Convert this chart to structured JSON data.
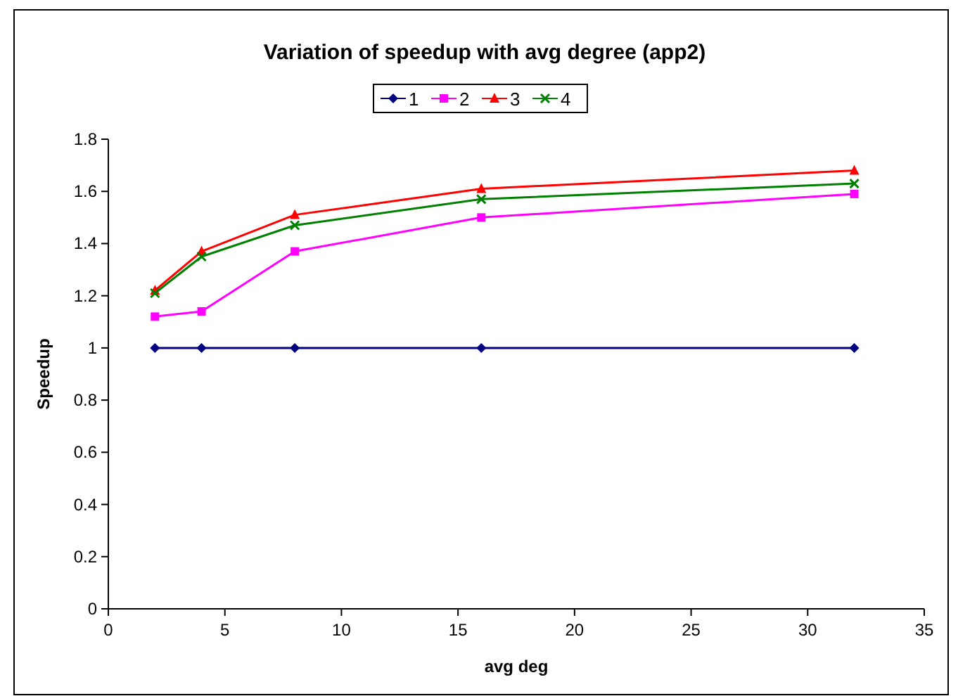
{
  "chart_data": {
    "type": "line",
    "title": "Variation of speedup with avg degree (app2)",
    "xlabel": "avg deg",
    "ylabel": "Speedup",
    "x": [
      2,
      4,
      8,
      16,
      32
    ],
    "series": [
      {
        "name": "1",
        "color": "#000080",
        "marker": "diamond",
        "values": [
          1,
          1,
          1,
          1,
          1
        ]
      },
      {
        "name": "2",
        "color": "#ff00ff",
        "marker": "square",
        "values": [
          1.12,
          1.14,
          1.37,
          1.5,
          1.59
        ]
      },
      {
        "name": "3",
        "color": "#ff0000",
        "marker": "triangle",
        "values": [
          1.22,
          1.37,
          1.51,
          1.61,
          1.68
        ]
      },
      {
        "name": "4",
        "color": "#008000",
        "marker": "cross",
        "values": [
          1.21,
          1.35,
          1.47,
          1.57,
          1.63
        ]
      }
    ],
    "xlim": [
      0,
      35
    ],
    "xticks": [
      0,
      5,
      10,
      15,
      20,
      25,
      30,
      35
    ],
    "ylim": [
      0,
      1.8
    ],
    "yticks": [
      0,
      0.2,
      0.4,
      0.6,
      0.8,
      1,
      1.2,
      1.4,
      1.6,
      1.8
    ],
    "grid": false,
    "legend": "top"
  }
}
